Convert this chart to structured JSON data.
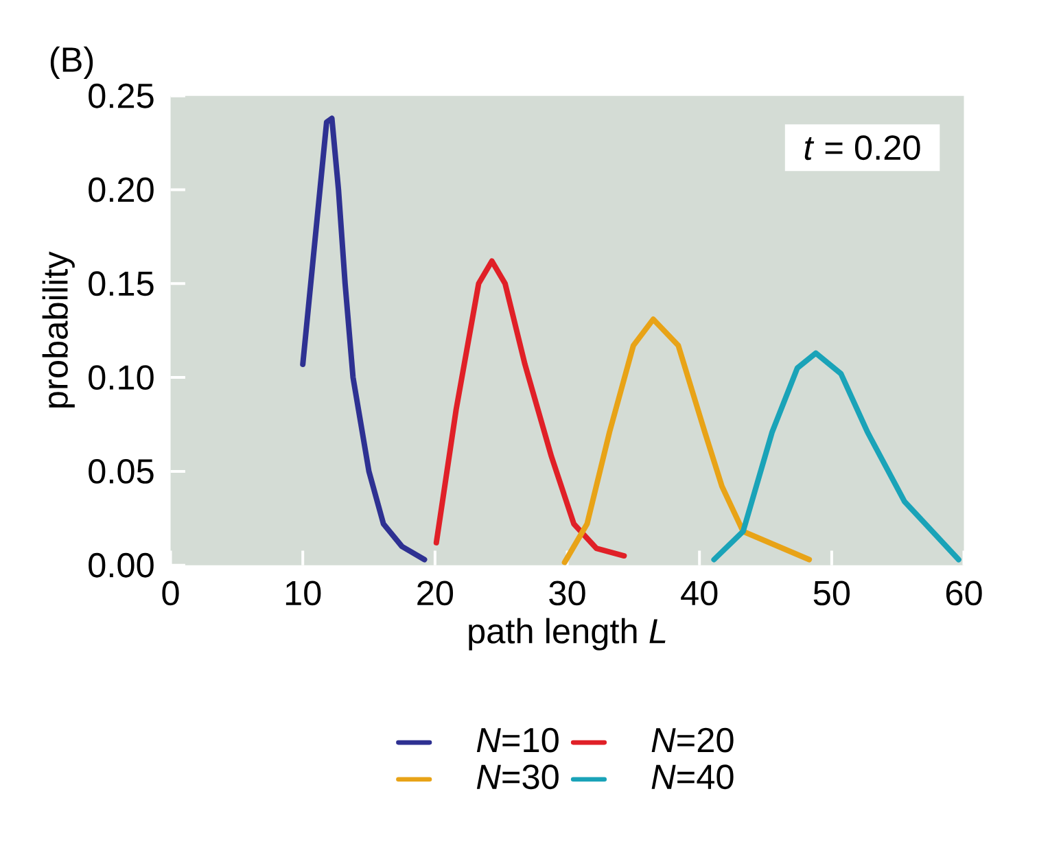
{
  "chart_data": {
    "type": "line",
    "title": "(B)",
    "xlabel": "path length *L*",
    "ylabel": "probability",
    "annotations": [
      "*t* = 0.20"
    ],
    "xlim": [
      0,
      60
    ],
    "xticks": [
      0,
      10,
      20,
      30,
      40,
      50,
      60
    ],
    "ylim": [
      0,
      0.25
    ],
    "yticks": [
      {
        "value": 0,
        "label": "0.00"
      },
      {
        "value": 0.05,
        "label": "0.05"
      },
      {
        "value": 0.1,
        "label": "0.10"
      },
      {
        "value": 0.15,
        "label": "0.15"
      },
      {
        "value": 0.2,
        "label": "0.20"
      },
      {
        "value": 0.25,
        "label": "0.25"
      }
    ],
    "grid": false,
    "legend": "bottom",
    "marker": "none",
    "line_style": "solid",
    "series": [
      {
        "name": "*N*=10",
        "color": "#2e3192",
        "x": [
          10,
          11.8,
          12.2,
          12.7,
          13.2,
          13.8,
          15.0,
          16.1,
          17.5,
          19.2
        ],
        "values": [
          0.107,
          0.236,
          0.238,
          0.2,
          0.15,
          0.1,
          0.05,
          0.022,
          0.01,
          0.003
        ]
      },
      {
        "name": "*N*=20",
        "color": "#e02027",
        "x": [
          20.1,
          21.6,
          23.3,
          24.3,
          25.3,
          26.8,
          28.8,
          30.5,
          32.2,
          34.3
        ],
        "values": [
          0.012,
          0.083,
          0.15,
          0.162,
          0.15,
          0.107,
          0.058,
          0.022,
          0.009,
          0.005
        ]
      },
      {
        "name": "*N*=30",
        "color": "#e8a317",
        "x": [
          29.8,
          31.5,
          33.2,
          35.0,
          36.5,
          38.4,
          40.4,
          41.7,
          43.3,
          48.3
        ],
        "values": [
          0.0015,
          0.022,
          0.071,
          0.117,
          0.131,
          0.117,
          0.071,
          0.042,
          0.018,
          0.003
        ]
      },
      {
        "name": "*N*=40",
        "color": "#1aa3b8",
        "x": [
          41.1,
          43.3,
          45.5,
          47.4,
          48.8,
          50.7,
          52.7,
          55.5,
          59.6
        ],
        "values": [
          0.003,
          0.018,
          0.071,
          0.105,
          0.113,
          0.102,
          0.071,
          0.034,
          0.003
        ]
      }
    ]
  }
}
